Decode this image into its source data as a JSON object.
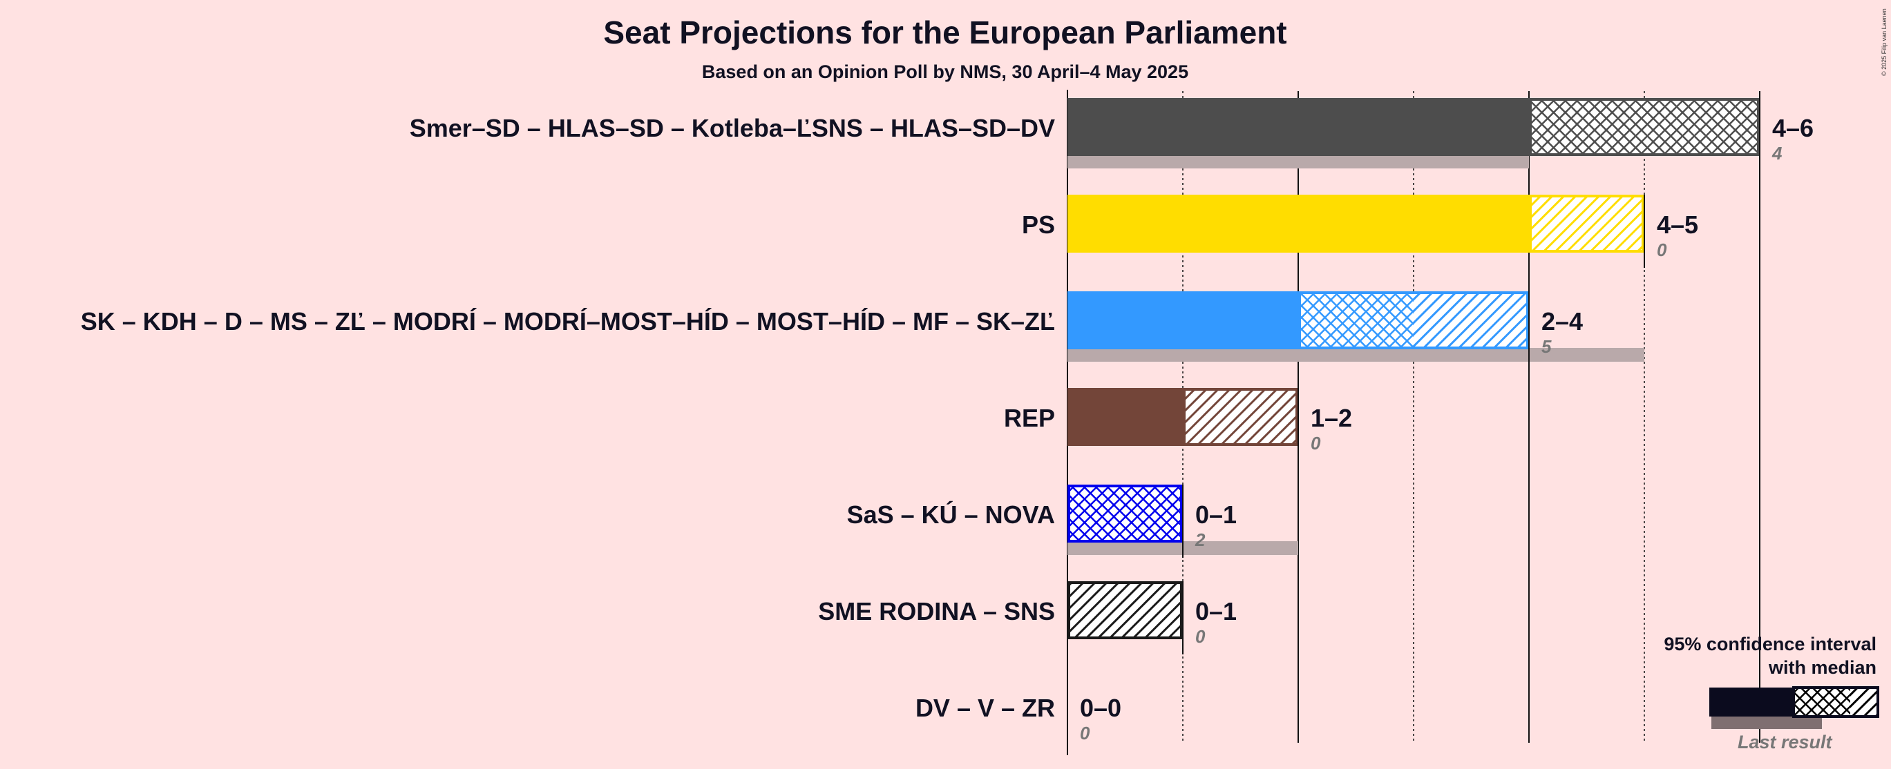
{
  "chart_data": {
    "type": "bar",
    "title": "Seat Projections for the European Parliament",
    "subtitle": "Based on an Opinion Poll by NMS, 30 April–4 May 2025",
    "xlim": [
      0,
      6
    ],
    "series": [
      {
        "name": "Smer–SD – HLAS–SD – Kotleba–ĽSNS – HLAS–SD–DV",
        "low": 4,
        "median": 6,
        "high": 6,
        "last_result": 4,
        "range_label": "4–6",
        "last_label": "4",
        "color": "#4d4d4d"
      },
      {
        "name": "PS",
        "low": 4,
        "median": 4,
        "high": 5,
        "last_result": 0,
        "range_label": "4–5",
        "last_label": "0",
        "color": "#ffdd00"
      },
      {
        "name": "SK – KDH – D – MS – ZĽ – MODRÍ – MODRÍ–MOST–HÍD – MOST–HÍD – MF – SK–ZĽ",
        "low": 2,
        "median": 3,
        "high": 4,
        "last_result": 5,
        "range_label": "2–4",
        "last_label": "5",
        "color": "#3399ff"
      },
      {
        "name": "REP",
        "low": 1,
        "median": 1,
        "high": 2,
        "last_result": 0,
        "range_label": "1–2",
        "last_label": "0",
        "color": "#734539"
      },
      {
        "name": "SaS – KÚ – NOVA",
        "low": 0,
        "median": 1,
        "high": 1,
        "last_result": 2,
        "range_label": "0–1",
        "last_label": "2",
        "color": "#0000ee"
      },
      {
        "name": "SME RODINA – SNS",
        "low": 0,
        "median": 0,
        "high": 1,
        "last_result": 0,
        "range_label": "0–1",
        "last_label": "0",
        "color": "#1a1a1a"
      },
      {
        "name": "DV – V – ZR",
        "low": 0,
        "median": 0,
        "high": 0,
        "last_result": 0,
        "range_label": "0–0",
        "last_label": "0",
        "color": "#1a1a1a"
      }
    ],
    "legend": {
      "title_line1": "95% confidence interval",
      "title_line2": "with median",
      "last_result_label": "Last result",
      "position": "bottom-right"
    },
    "copyright": "© 2025 Filip van Laenen"
  }
}
